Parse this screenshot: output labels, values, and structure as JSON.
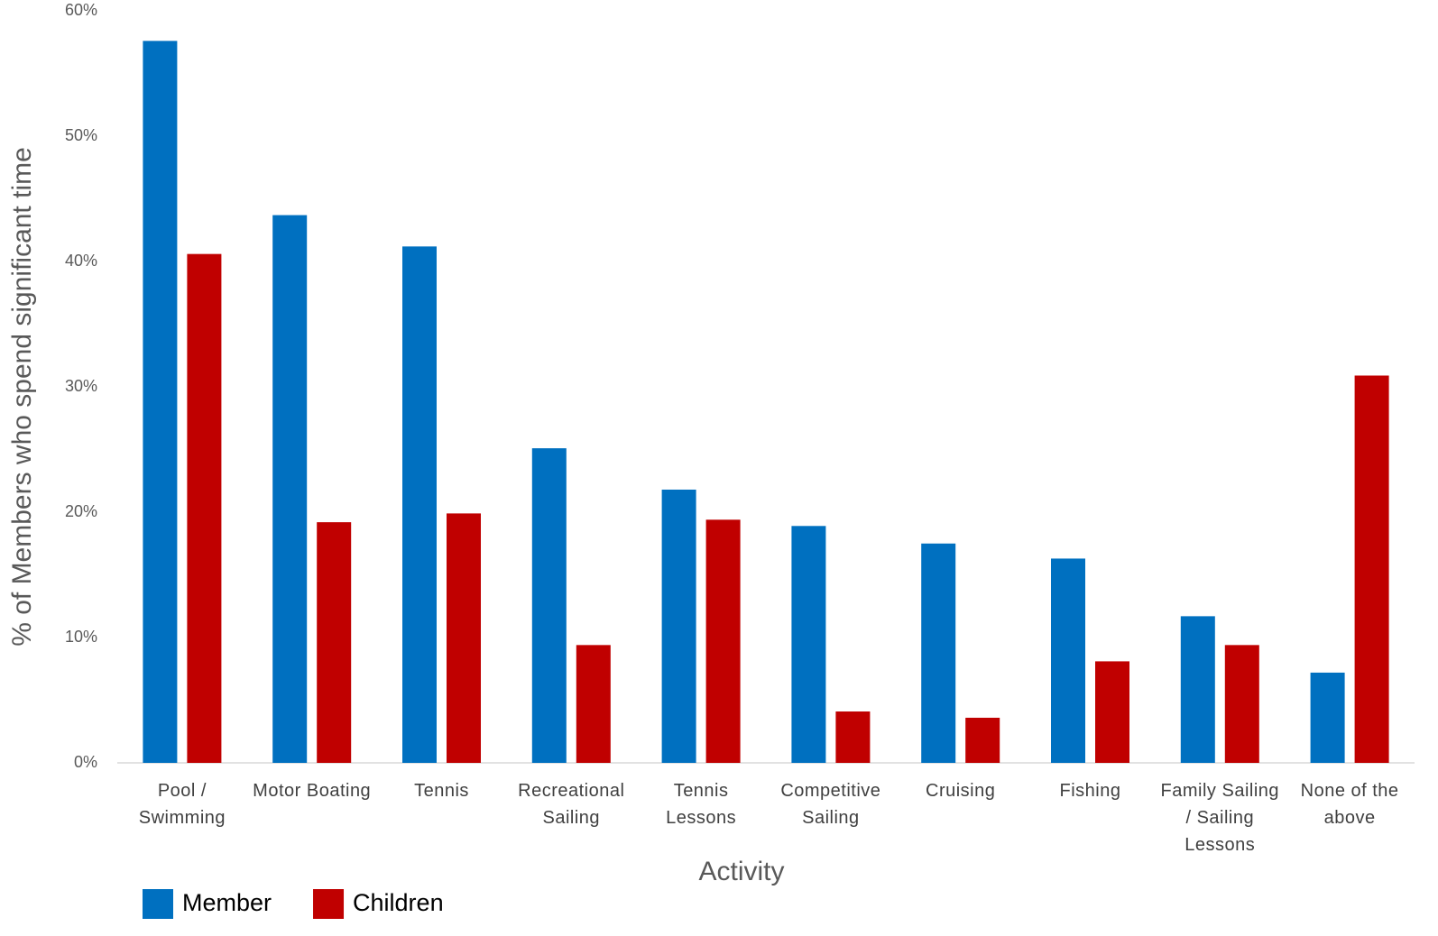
{
  "chart_data": {
    "type": "bar",
    "x_label": "Activity",
    "y_label": "% of Members who spend significant time",
    "categories": [
      "Pool / Swimming",
      "Motor Boating",
      "Tennis",
      "Recreational Sailing",
      "Tennis Lessons",
      "Competitive Sailing",
      "Cruising",
      "Fishing",
      "Family Sailing / Sailing Lessons",
      "None of the above"
    ],
    "series": [
      {
        "name": "Member",
        "color": "#0070c0",
        "values": [
          57.6,
          43.7,
          41.2,
          25.1,
          21.8,
          18.9,
          17.5,
          16.3,
          11.7,
          7.2
        ]
      },
      {
        "name": "Children",
        "color": "#c00000",
        "values": [
          40.6,
          19.2,
          19.9,
          9.4,
          19.4,
          4.1,
          3.6,
          8.1,
          9.4,
          30.9
        ]
      }
    ],
    "ylim": [
      0,
      60
    ],
    "yticks": [
      {
        "value": 0,
        "label": "0%"
      },
      {
        "value": 10,
        "label": "10%"
      },
      {
        "value": 20,
        "label": "20%"
      },
      {
        "value": 30,
        "label": "30%"
      },
      {
        "value": 40,
        "label": "40%"
      },
      {
        "value": 50,
        "label": "50%"
      },
      {
        "value": 60,
        "label": "60%"
      }
    ],
    "grid": false,
    "legend": "bottom-left"
  }
}
